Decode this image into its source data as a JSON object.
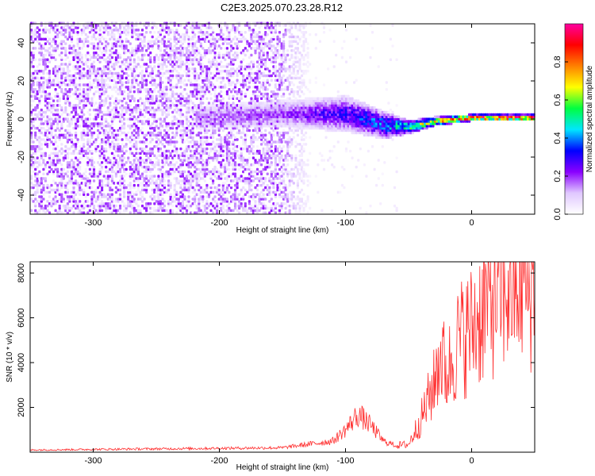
{
  "chart_data": [
    {
      "type": "heatmap",
      "title": "C2E3.2025.070.23.28.R12",
      "xlabel": "Height of straight line (km)",
      "ylabel": "Frequency (Hz)",
      "xlim": [
        -350,
        50
      ],
      "ylim": [
        -50,
        50
      ],
      "x_ticks": [
        -300,
        -200,
        -100,
        0
      ],
      "y_ticks": [
        -40,
        -20,
        0,
        20,
        40
      ],
      "colorbar": {
        "label": "Normalized spectral amplitude",
        "range": [
          0,
          1
        ],
        "ticks": [
          "0.0",
          "0.2",
          "0.4",
          "0.6",
          "0.8"
        ],
        "tick_values": [
          0.0,
          0.2,
          0.4,
          0.6,
          0.8
        ],
        "colors": [
          "#ffffff",
          "#e0c8ff",
          "#8a00ff",
          "#0000ff",
          "#00e6ff",
          "#00ff40",
          "#ffff00",
          "#ff8000",
          "#ff0000",
          "#ff00a0"
        ]
      },
      "features": {
        "noise_region_x": [
          -350,
          -125
        ],
        "noise_amplitude": 0.25,
        "signal_band": [
          {
            "x": -220,
            "freq": 0,
            "halfwidth": 5,
            "amp": 0.15
          },
          {
            "x": -150,
            "freq": 2,
            "halfwidth": 6,
            "amp": 0.2
          },
          {
            "x": -100,
            "freq": 2,
            "halfwidth": 8,
            "amp": 0.3
          },
          {
            "x": -70,
            "freq": -4,
            "halfwidth": 6,
            "amp": 0.4
          },
          {
            "x": -50,
            "freq": -5,
            "halfwidth": 3,
            "amp": 0.55
          },
          {
            "x": -30,
            "freq": -2,
            "halfwidth": 2,
            "amp": 0.7
          },
          {
            "x": 0,
            "freq": 0,
            "halfwidth": 1.5,
            "amp": 0.9
          },
          {
            "x": 50,
            "freq": 0,
            "halfwidth": 1.5,
            "amp": 0.95
          }
        ]
      }
    },
    {
      "type": "line",
      "title": "",
      "xlabel": "Height of straight line (km)",
      "ylabel": "SNR (10 * v/v)",
      "xlim": [
        -350,
        50
      ],
      "ylim": [
        0,
        8500
      ],
      "x_ticks": [
        -300,
        -200,
        -100,
        0
      ],
      "y_ticks": [
        2000,
        4000,
        6000,
        8000
      ],
      "color": "#ff3030",
      "grid": false,
      "series": [
        {
          "x": [
            -350,
            -250,
            -150,
            -110,
            -100,
            -90,
            -80,
            -70,
            -60,
            -50,
            -40,
            -30,
            -25,
            -20,
            -10,
            0,
            10,
            20,
            30,
            40,
            50
          ],
          "values": [
            100,
            150,
            200,
            500,
            1000,
            1700,
            1200,
            500,
            300,
            350,
            1500,
            3000,
            4500,
            3500,
            5000,
            5500,
            6500,
            7200,
            7500,
            7700,
            7500
          ]
        }
      ]
    }
  ]
}
